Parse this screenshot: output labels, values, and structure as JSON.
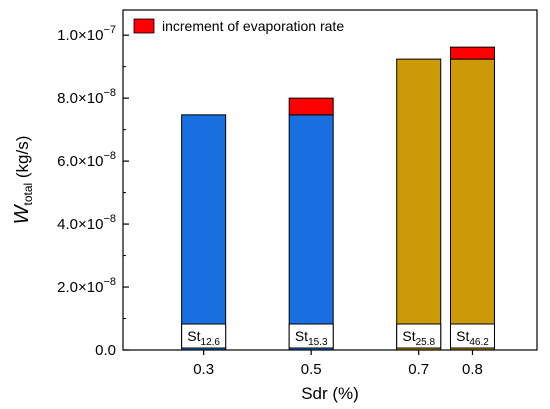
{
  "chart_data": {
    "type": "bar",
    "title": "",
    "xlabel": "Sdr (%)",
    "ylabel": {
      "main": "W",
      "sub": "total",
      "unit": " (kg/s)"
    },
    "xlim": [
      0.15,
      0.92
    ],
    "ylim": [
      0,
      1.08e-07
    ],
    "x_ticks": [
      {
        "value": 0.3,
        "label": "0.3"
      },
      {
        "value": 0.5,
        "label": "0.5"
      },
      {
        "value": 0.7,
        "label": "0.7"
      },
      {
        "value": 0.8,
        "label": "0.8"
      }
    ],
    "y_ticks": [
      {
        "value": 0,
        "label": "0.0"
      },
      {
        "value": 2e-08,
        "label": "2.0×10",
        "exp": "−8"
      },
      {
        "value": 4e-08,
        "label": "4.0×10",
        "exp": "−8"
      },
      {
        "value": 6e-08,
        "label": "6.0×10",
        "exp": "−8"
      },
      {
        "value": 8e-08,
        "label": "8.0×10",
        "exp": "−8"
      },
      {
        "value": 1e-07,
        "label": "1.0×10",
        "exp": "−7"
      }
    ],
    "bars": [
      {
        "x": 0.3,
        "base": 7.47e-08,
        "increment": 0,
        "color": "#1a6fe0",
        "label": "St",
        "label_sub": "12.6"
      },
      {
        "x": 0.5,
        "base": 7.47e-08,
        "increment": 5.3e-09,
        "color": "#1a6fe0",
        "label": "St",
        "label_sub": "15.3"
      },
      {
        "x": 0.7,
        "base": 9.24e-08,
        "increment": 0,
        "color": "#cc9a06",
        "label": "St",
        "label_sub": "25.8"
      },
      {
        "x": 0.8,
        "base": 9.24e-08,
        "increment": 3.8e-09,
        "color": "#cc9a06",
        "label": "St",
        "label_sub": "46.2"
      }
    ],
    "legend": {
      "position": "top-left",
      "entries": [
        {
          "name": "increment of evaporation rate",
          "color": "#ff0000"
        }
      ]
    },
    "grid": false
  }
}
